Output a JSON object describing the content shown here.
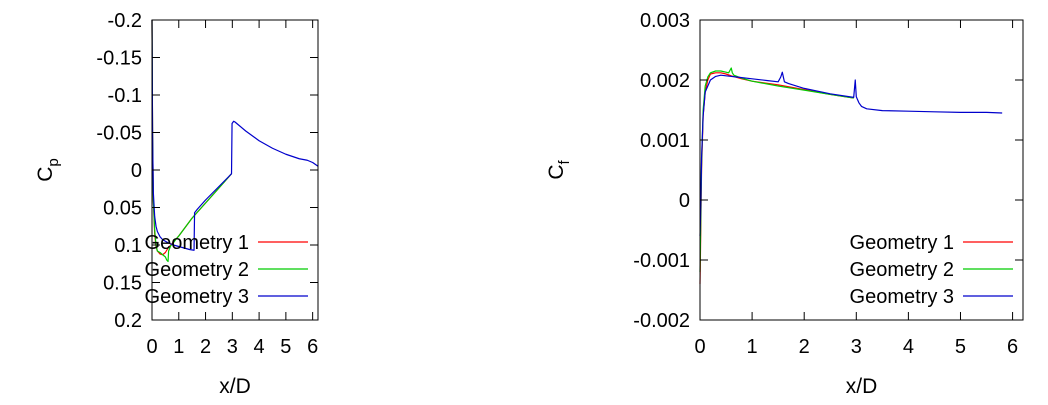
{
  "colors": {
    "g1": "#ff0000",
    "g2": "#00cc00",
    "g3": "#0000cc"
  },
  "chart_data": [
    {
      "type": "line",
      "xlabel": "x/D",
      "ylabel": "C",
      "ylabel_sub": "p",
      "xlim": [
        0,
        6.2
      ],
      "ylim": [
        0.2,
        -0.2
      ],
      "y_inverted": true,
      "xticks": [
        0,
        1,
        2,
        3,
        4,
        5,
        6
      ],
      "xtick_labels": [
        "0",
        "1",
        "2",
        "3",
        "4",
        "5",
        "6"
      ],
      "yticks": [
        -0.2,
        -0.15,
        -0.1,
        -0.05,
        0,
        0.05,
        0.1,
        0.15,
        0.2
      ],
      "ytick_labels": [
        "-0.2",
        "-0.15",
        "-0.1",
        "-0.05",
        "0",
        "0.05",
        "0.1",
        "0.15",
        "0.2"
      ],
      "grid": false,
      "legend_position": "bottom-right",
      "series": [
        {
          "name": "Geometry 1",
          "color": "#ff0000",
          "x": [
            0.0,
            0.02,
            0.05,
            0.1,
            0.15,
            0.2,
            0.3,
            0.4,
            0.5,
            0.6,
            0.7,
            0.8,
            0.9,
            1.0,
            1.5,
            2.0,
            2.5,
            2.97
          ],
          "y": [
            -0.2,
            -0.05,
            0.04,
            0.085,
            0.102,
            0.108,
            0.112,
            0.113,
            0.11,
            0.104,
            0.1,
            0.096,
            0.092,
            0.088,
            0.064,
            0.044,
            0.024,
            0.005
          ]
        },
        {
          "name": "Geometry 2",
          "color": "#00cc00",
          "x": [
            0.0,
            0.02,
            0.05,
            0.1,
            0.15,
            0.2,
            0.3,
            0.4,
            0.5,
            0.55,
            0.6,
            0.62,
            0.7,
            0.8,
            0.9,
            1.0,
            1.5,
            2.0,
            2.5,
            2.97
          ],
          "y": [
            -0.2,
            -0.05,
            0.04,
            0.08,
            0.1,
            0.108,
            0.11,
            0.113,
            0.116,
            0.12,
            0.122,
            0.108,
            0.101,
            0.097,
            0.092,
            0.088,
            0.064,
            0.044,
            0.024,
            0.005
          ]
        },
        {
          "name": "Geometry 3",
          "color": "#0000cc",
          "x": [
            0.0,
            0.02,
            0.05,
            0.1,
            0.15,
            0.2,
            0.3,
            0.4,
            0.5,
            0.6,
            0.8,
            1.0,
            1.2,
            1.4,
            1.57,
            1.59,
            1.7,
            2.0,
            2.5,
            2.97,
            2.99,
            3.05,
            3.1,
            3.2,
            3.5,
            4.0,
            4.5,
            5.0,
            5.5,
            5.8,
            6.0,
            6.2
          ],
          "y": [
            -0.2,
            -0.05,
            0.03,
            0.062,
            0.075,
            0.082,
            0.089,
            0.093,
            0.095,
            0.097,
            0.1,
            0.102,
            0.104,
            0.106,
            0.107,
            0.057,
            0.052,
            0.04,
            0.022,
            0.005,
            -0.062,
            -0.065,
            -0.064,
            -0.061,
            -0.052,
            -0.039,
            -0.029,
            -0.021,
            -0.015,
            -0.013,
            -0.01,
            -0.005
          ]
        }
      ]
    },
    {
      "type": "line",
      "xlabel": "x/D",
      "ylabel": "C",
      "ylabel_sub": "f",
      "xlim": [
        0,
        6.2
      ],
      "ylim": [
        -0.002,
        0.003
      ],
      "xticks": [
        0,
        1,
        2,
        3,
        4,
        5,
        6
      ],
      "xtick_labels": [
        "0",
        "1",
        "2",
        "3",
        "4",
        "5",
        "6"
      ],
      "yticks": [
        -0.002,
        -0.001,
        0,
        0.001,
        0.002,
        0.003
      ],
      "ytick_labels": [
        "-0.002",
        "-0.001",
        "0",
        "0.001",
        "0.002",
        "0.003"
      ],
      "grid": false,
      "legend_position": "bottom-right",
      "series": [
        {
          "name": "Geometry 1",
          "color": "#ff0000",
          "x": [
            0.0,
            0.01,
            0.03,
            0.06,
            0.1,
            0.15,
            0.2,
            0.3,
            0.4,
            0.5,
            0.6,
            0.8,
            1.0,
            1.5,
            2.0,
            2.5,
            2.95
          ],
          "y": [
            -0.0014,
            -0.0008,
            0.0005,
            0.0014,
            0.0018,
            0.002,
            0.0021,
            0.00212,
            0.00212,
            0.0021,
            0.00207,
            0.00202,
            0.00198,
            0.00192,
            0.00184,
            0.00176,
            0.0017
          ]
        },
        {
          "name": "Geometry 2",
          "color": "#00cc00",
          "x": [
            0.0,
            0.01,
            0.03,
            0.06,
            0.1,
            0.15,
            0.2,
            0.3,
            0.4,
            0.5,
            0.55,
            0.6,
            0.62,
            0.65,
            0.8,
            1.0,
            1.5,
            2.0,
            2.5,
            2.95
          ],
          "y": [
            -0.0012,
            -0.0006,
            0.0006,
            0.0015,
            0.0019,
            0.00205,
            0.00212,
            0.00215,
            0.00215,
            0.00213,
            0.00212,
            0.0022,
            0.00212,
            0.00208,
            0.00203,
            0.00198,
            0.0019,
            0.00183,
            0.00176,
            0.0017
          ]
        },
        {
          "name": "Geometry 3",
          "color": "#0000cc",
          "x": [
            0.0,
            0.01,
            0.03,
            0.06,
            0.1,
            0.15,
            0.2,
            0.3,
            0.4,
            0.5,
            0.7,
            1.0,
            1.3,
            1.5,
            1.55,
            1.58,
            1.62,
            1.7,
            2.0,
            2.5,
            2.95,
            2.98,
            3.0,
            3.05,
            3.1,
            3.2,
            3.5,
            4.0,
            4.5,
            5.0,
            5.5,
            5.8
          ],
          "y": [
            -0.0006,
            -0.0003,
            0.0007,
            0.0014,
            0.0018,
            0.0019,
            0.002,
            0.00206,
            0.00208,
            0.00207,
            0.00205,
            0.00202,
            0.00199,
            0.00197,
            0.00205,
            0.00213,
            0.00197,
            0.00194,
            0.00186,
            0.00177,
            0.00171,
            0.002,
            0.00172,
            0.00162,
            0.00156,
            0.00152,
            0.00149,
            0.00148,
            0.00147,
            0.00146,
            0.00146,
            0.00145
          ]
        }
      ]
    }
  ]
}
